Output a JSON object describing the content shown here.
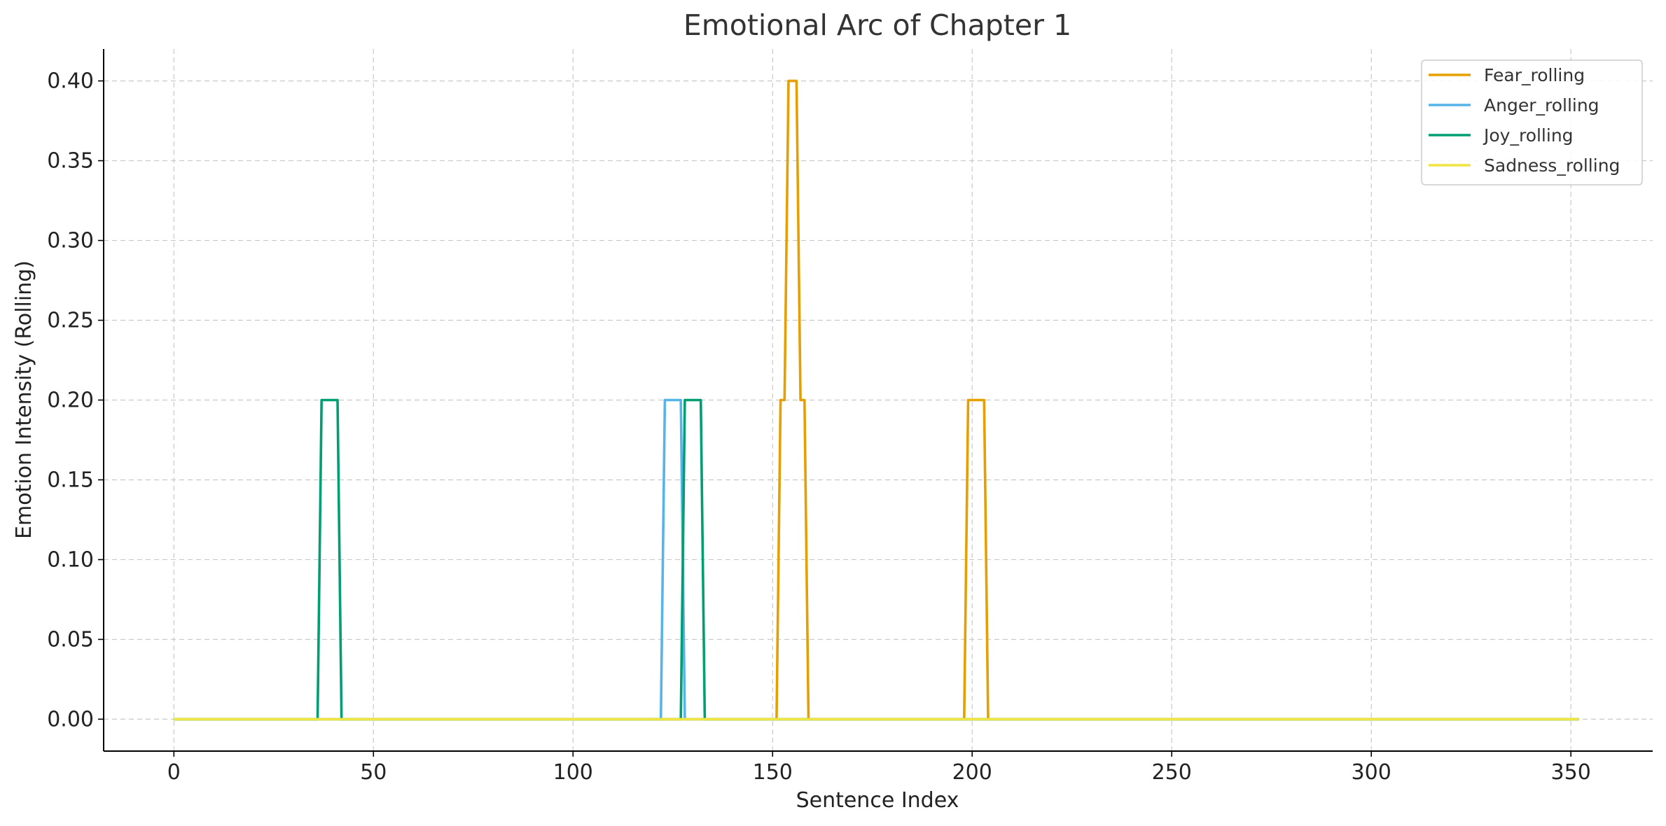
{
  "chart_data": {
    "type": "line",
    "title": "Emotional Arc of Chapter 1",
    "xlabel": "Sentence Index",
    "ylabel": "Emotion Intensity (Rolling)",
    "xlim": [
      -17.6,
      370.5
    ],
    "ylim": [
      -0.02,
      0.42
    ],
    "x_ticks": [
      0,
      50,
      100,
      150,
      200,
      250,
      300,
      350
    ],
    "x_tick_labels": [
      "0",
      "50",
      "100",
      "150",
      "200",
      "250",
      "300",
      "350"
    ],
    "y_ticks": [
      0.0,
      0.05,
      0.1,
      0.15,
      0.2,
      0.25,
      0.3,
      0.35,
      0.4
    ],
    "y_tick_labels": [
      "0.00",
      "0.05",
      "0.10",
      "0.15",
      "0.20",
      "0.25",
      "0.30",
      "0.35",
      "0.40"
    ],
    "grid": true,
    "legend_position": "top-right",
    "series": [
      {
        "name": "Fear_rolling",
        "color": "#E69F00",
        "points": [
          [
            0,
            0
          ],
          [
            151,
            0
          ],
          [
            152,
            0.2
          ],
          [
            153,
            0.2
          ],
          [
            154,
            0.4
          ],
          [
            156,
            0.4
          ],
          [
            157,
            0.2
          ],
          [
            158,
            0.2
          ],
          [
            159,
            0
          ],
          [
            198,
            0
          ],
          [
            199,
            0.2
          ],
          [
            203,
            0.2
          ],
          [
            204,
            0
          ],
          [
            352,
            0
          ]
        ]
      },
      {
        "name": "Anger_rolling",
        "color": "#56B4E9",
        "points": [
          [
            0,
            0
          ],
          [
            122,
            0
          ],
          [
            123,
            0.2
          ],
          [
            127,
            0.2
          ],
          [
            128,
            0
          ],
          [
            352,
            0
          ]
        ]
      },
      {
        "name": "Joy_rolling",
        "color": "#009E73",
        "points": [
          [
            0,
            0
          ],
          [
            36,
            0
          ],
          [
            37,
            0.2
          ],
          [
            41,
            0.2
          ],
          [
            42,
            0
          ],
          [
            127,
            0
          ],
          [
            128,
            0.2
          ],
          [
            132,
            0.2
          ],
          [
            133,
            0
          ],
          [
            352,
            0
          ]
        ]
      },
      {
        "name": "Sadness_rolling",
        "color": "#F0E442",
        "points": [
          [
            0,
            0
          ],
          [
            352,
            0
          ]
        ]
      }
    ]
  }
}
